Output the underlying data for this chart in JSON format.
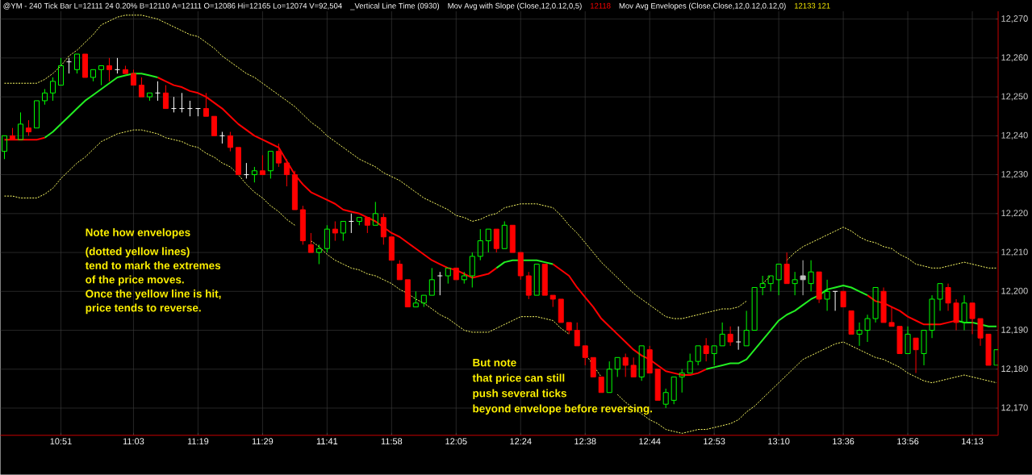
{
  "chart_data": {
    "type": "candlestick",
    "title": "@YM - 240 Tick Bar L=12111 24 0.20% B=12110 A=12111 O=12086 Hi=12165 Lo=12074 V=92,504",
    "annotations": [
      "_Vertical Line Time (0930)",
      "Mov Avg with Slope (Close,12,0.12,0,5)",
      "12118",
      "Mov Avg Envelopes (Close,Close,12,0.12,0.12,0)",
      "12133 121",
      "Note how envelopes",
      "(dotted yellow lines)",
      "tend to mark the extremes",
      "of the price moves.",
      "Once the yellow line is hit,",
      "price tends to reverse.",
      "But note",
      "that price can still",
      "push several ticks",
      "beyond envelope before reversing."
    ],
    "categories": [
      null,
      null,
      null,
      null,
      null,
      null,
      null,
      "10:51",
      null,
      null,
      null,
      null,
      null,
      null,
      null,
      null,
      "11:03",
      null,
      null,
      null,
      null,
      null,
      null,
      null,
      "11:19",
      null,
      null,
      null,
      null,
      null,
      null,
      null,
      "11:29",
      null,
      null,
      null,
      null,
      null,
      null,
      null,
      "11:41",
      null,
      null,
      null,
      null,
      null,
      null,
      null,
      "11:58",
      null,
      null,
      null,
      null,
      null,
      null,
      null,
      "12:05",
      null,
      null,
      null,
      null,
      null,
      null,
      null,
      "12:24",
      null,
      null,
      null,
      null,
      null,
      null,
      null,
      "12:38",
      null,
      null,
      null,
      null,
      null,
      null,
      null,
      "12:44",
      null,
      null,
      null,
      null,
      null,
      null,
      null,
      "12:53",
      null,
      null,
      null,
      null,
      null,
      null,
      null,
      "13:10",
      null,
      null,
      null,
      null,
      null,
      null,
      null,
      "13:36",
      null,
      null,
      null,
      null,
      null,
      null,
      null,
      "13:56",
      null,
      null,
      null,
      null,
      null,
      null,
      null,
      "14:13",
      null,
      null,
      null
    ],
    "ohlc": [
      [
        12236,
        12240,
        12234,
        12240
      ],
      [
        12240,
        12242,
        12239,
        12239
      ],
      [
        12239,
        12246,
        12239,
        12243
      ],
      [
        12242,
        12244,
        12240,
        12241
      ],
      [
        12242,
        12249,
        12242,
        12249
      ],
      [
        12249,
        12252,
        12248,
        12251
      ],
      [
        12251,
        12255,
        12249,
        12254
      ],
      [
        12253,
        12260,
        12253,
        12258
      ],
      [
        12259,
        12260,
        12256,
        12259
      ],
      [
        12257,
        12261,
        12256,
        12261
      ],
      [
        12261,
        12261,
        12255,
        12255
      ],
      [
        12255,
        12257,
        12254,
        12257
      ],
      [
        12257,
        12258,
        12253,
        12258
      ],
      [
        12258,
        12260,
        12254,
        12257
      ],
      [
        12257,
        12260,
        12256,
        12257
      ],
      [
        12257,
        12258,
        12256,
        12256
      ],
      [
        12256,
        12257,
        12253,
        12253
      ],
      [
        12253,
        12255,
        12250,
        12250
      ],
      [
        12250,
        12251,
        12249,
        12251
      ],
      [
        12251,
        12254,
        12249,
        12251
      ],
      [
        12251,
        12253,
        12247,
        12247
      ],
      [
        12247,
        12250,
        12246,
        12247
      ],
      [
        12247,
        12251,
        12246,
        12247
      ],
      [
        12247,
        12249,
        12245,
        12247
      ],
      [
        12247,
        12247,
        12245,
        12247
      ],
      [
        12247,
        12251,
        12245,
        12245
      ],
      [
        12245,
        12245,
        12240,
        12240
      ],
      [
        12240,
        12241,
        12238,
        12240
      ],
      [
        12240,
        12241,
        12236,
        12237
      ],
      [
        12237,
        12237,
        12230,
        12230
      ],
      [
        12230,
        12233,
        12229,
        12230
      ],
      [
        12230,
        12232,
        12228,
        12231
      ],
      [
        12231,
        12235,
        12230,
        12230
      ],
      [
        12231,
        12236,
        12229,
        12236
      ],
      [
        12236,
        12238,
        12232,
        12233
      ],
      [
        12233,
        12234,
        12227,
        12230
      ],
      [
        12230,
        12231,
        12221,
        12221
      ],
      [
        12221,
        12222,
        12212,
        12213
      ],
      [
        12212,
        12215,
        12210,
        12210
      ],
      [
        12210,
        12212,
        12207,
        12211
      ],
      [
        12211,
        12217,
        12210,
        12216
      ],
      [
        12216,
        12218,
        12213,
        12215
      ],
      [
        12215,
        12218,
        12213,
        12218
      ],
      [
        12218,
        12220,
        12215,
        12218
      ],
      [
        12218,
        12219,
        12217,
        12219
      ],
      [
        12219,
        12219,
        12215,
        12217
      ],
      [
        12217,
        12223,
        12217,
        12220
      ],
      [
        12219,
        12220,
        12212,
        12214
      ],
      [
        12214,
        12214,
        12208,
        12208
      ],
      [
        12207,
        12208,
        12203,
        12203
      ],
      [
        12203,
        12203,
        12196,
        12196
      ],
      [
        12196,
        12200,
        12196,
        12197
      ],
      [
        12197,
        12199,
        12196,
        12199
      ],
      [
        12199,
        12206,
        12199,
        12203
      ],
      [
        12204,
        12205,
        12199,
        12204
      ],
      [
        12204,
        12206,
        12202,
        12206
      ],
      [
        12206,
        12206,
        12203,
        12203
      ],
      [
        12203,
        12205,
        12202,
        12204
      ],
      [
        12204,
        12210,
        12201,
        12209
      ],
      [
        12209,
        12216,
        12208,
        12213
      ],
      [
        12213,
        12216,
        12210,
        12216
      ],
      [
        12216,
        12216,
        12210,
        12211
      ],
      [
        12211,
        12218,
        12211,
        12217
      ],
      [
        12217,
        12217,
        12210,
        12210
      ],
      [
        12210,
        12210,
        12203,
        12204
      ],
      [
        12204,
        12205,
        12198,
        12199
      ],
      [
        12199,
        12207,
        12199,
        12207
      ],
      [
        12207,
        12207,
        12199,
        12199
      ],
      [
        12199,
        12199,
        12196,
        12198
      ],
      [
        12198,
        12198,
        12192,
        12192
      ],
      [
        12192,
        12192,
        12189,
        12190
      ],
      [
        12190,
        12192,
        12186,
        12186
      ],
      [
        12186,
        12186,
        12181,
        12183
      ],
      [
        12183,
        12183,
        12178,
        12178
      ],
      [
        12178,
        12178,
        12174,
        12174
      ],
      [
        12174,
        12182,
        12174,
        12180
      ],
      [
        12180,
        12183,
        12178,
        12183
      ],
      [
        12183,
        12184,
        12178,
        12181
      ],
      [
        12181,
        12183,
        12178,
        12178
      ],
      [
        12178,
        12186,
        12177,
        12186
      ],
      [
        12185,
        12186,
        12179,
        12179
      ],
      [
        12180,
        12180,
        12172,
        12172
      ],
      [
        12171,
        12175,
        12170,
        12174
      ],
      [
        12172,
        12178,
        12171,
        12178
      ],
      [
        12178,
        12180,
        12174,
        12179
      ],
      [
        12179,
        12184,
        12179,
        12182
      ],
      [
        12182,
        12186,
        12181,
        12186
      ],
      [
        12186,
        12188,
        12182,
        12184
      ],
      [
        12184,
        12186,
        12181,
        12186
      ],
      [
        12186,
        12192,
        12186,
        12189
      ],
      [
        12189,
        12191,
        12186,
        12187
      ],
      [
        12187,
        12191,
        12185,
        12187
      ],
      [
        12186,
        12195,
        12186,
        12190
      ],
      [
        12190,
        12201,
        12190,
        12201
      ],
      [
        12201,
        12204,
        12199,
        12202
      ],
      [
        12202,
        12204,
        12200,
        12204
      ],
      [
        12203,
        12207,
        12199,
        12207
      ],
      [
        12207,
        12210,
        12202,
        12202
      ],
      [
        12202,
        12205,
        12199,
        12203
      ],
      [
        12204,
        12208,
        12199,
        12203
      ],
      [
        12202,
        12208,
        12200,
        12205
      ],
      [
        12205,
        12205,
        12197,
        12198
      ],
      [
        12198,
        12203,
        12195,
        12200
      ],
      [
        12200,
        12200,
        12195,
        12200
      ],
      [
        12200,
        12200,
        12196,
        12196
      ],
      [
        12195,
        12195,
        12189,
        12189
      ],
      [
        12189,
        12192,
        12186,
        12190
      ],
      [
        12190,
        12194,
        12187,
        12193
      ],
      [
        12193,
        12201,
        12192,
        12201
      ],
      [
        12200,
        12201,
        12192,
        12192
      ],
      [
        12192,
        12196,
        12191,
        12191
      ],
      [
        12191,
        12191,
        12184,
        12184
      ],
      [
        12184,
        12191,
        12184,
        12189
      ],
      [
        12188,
        12188,
        12179,
        12185
      ],
      [
        12184,
        12190,
        12181,
        12190
      ],
      [
        12190,
        12199,
        12188,
        12198
      ],
      [
        12198,
        12202,
        12195,
        12202
      ],
      [
        12201,
        12202,
        12195,
        12197
      ],
      [
        12197,
        12198,
        12190,
        12192
      ],
      [
        12192,
        12199,
        12190,
        12197
      ],
      [
        12197,
        12197,
        12189,
        12193
      ],
      [
        12193,
        12193,
        12186,
        12188
      ],
      [
        12189,
        12189,
        12181,
        12181
      ],
      [
        12181,
        12185,
        12181,
        12185
      ]
    ],
    "colors": [
      "#00ff00",
      "#ff0000",
      "#00ff00",
      "#ff0000",
      "#00ff00",
      "#00ff00",
      "#00ff00",
      "#00ff00",
      "#ffffff",
      "#00ff00",
      "#ff0000",
      "#00ff00",
      "#00ff00",
      "#ff0000",
      "#ffffff",
      "#ff0000",
      "#ff0000",
      "#ff0000",
      "#00ff00",
      "#ffffff",
      "#ff0000",
      "#ffffff",
      "#ffffff",
      "#ffffff",
      "#ffffff",
      "#ff0000",
      "#ff0000",
      "#ffffff",
      "#ff0000",
      "#ff0000",
      "#ffffff",
      "#00ff00",
      "#ff0000",
      "#00ff00",
      "#ff0000",
      "#ff0000",
      "#ff0000",
      "#ff0000",
      "#ff0000",
      "#00ff00",
      "#00ff00",
      "#ff0000",
      "#00ff00",
      "#ffffff",
      "#00ff00",
      "#ff0000",
      "#00ff00",
      "#ff0000",
      "#ff0000",
      "#ff0000",
      "#ff0000",
      "#00ff00",
      "#00ff00",
      "#00ff00",
      "#ffffff",
      "#00ff00",
      "#ff0000",
      "#00ff00",
      "#00ff00",
      "#00ff00",
      "#00ff00",
      "#ff0000",
      "#00ff00",
      "#ff0000",
      "#ff0000",
      "#ff0000",
      "#00ff00",
      "#ff0000",
      "#ff0000",
      "#ff0000",
      "#ff0000",
      "#ff0000",
      "#ff0000",
      "#ff0000",
      "#ff0000",
      "#00ff00",
      "#00ff00",
      "#ff0000",
      "#ff0000",
      "#00ff00",
      "#ff0000",
      "#ff0000",
      "#00ff00",
      "#00ff00",
      "#00ff00",
      "#00ff00",
      "#00ff00",
      "#ff0000",
      "#00ff00",
      "#00ff00",
      "#ff0000",
      "#ffffff",
      "#00ff00",
      "#00ff00",
      "#00ff00",
      "#00ff00",
      "#00ff00",
      "#ff0000",
      "#00ff00",
      "#c0c0c0",
      "#00ff00",
      "#ff0000",
      "#00ff00",
      "#ffffff",
      "#ff0000",
      "#ff0000",
      "#00ff00",
      "#00ff00",
      "#00ff00",
      "#ff0000",
      "#ff0000",
      "#ff0000",
      "#00ff00",
      "#ff0000",
      "#00ff00",
      "#00ff00",
      "#00ff00",
      "#ff0000",
      "#ff0000",
      "#00ff00",
      "#ff0000",
      "#ff0000",
      "#ff0000",
      "#00ff00"
    ],
    "series": [
      {
        "type": "line",
        "color": "#ff0000",
        "line_style": "solid",
        "values": [
          12239,
          12239,
          12239,
          12239,
          12239,
          12239.5,
          null,
          null,
          null,
          null,
          null,
          null,
          null,
          null,
          null,
          null,
          null,
          null,
          null,
          12255,
          12254,
          12253,
          12252.5,
          12251.5,
          12251,
          12250,
          12248.5,
          12247,
          12245,
          12243,
          12241.5,
          12240,
          12239,
          12238,
          12237,
          12233.5,
          12230,
          12227.5,
          12225.5,
          12224.5,
          12223.5,
          12222.5,
          12221,
          12220.5,
          12220,
          12219,
          12218,
          12216.5,
          12215,
          12214,
          12212.5,
          12211,
          12209.5,
          12208,
          12207,
          12206,
          12205.5,
          12204.5,
          12203.5,
          12204,
          12204.5,
          12206,
          null,
          null,
          null,
          null,
          null,
          null,
          12207,
          12205.5,
          12204,
          12201,
          12198.5,
          12196,
          12193,
          12191,
          12189,
          12187,
          12185,
          12183.5,
          12182.5,
          12181,
          12179.5,
          12179,
          12178.5,
          12178.5,
          12179,
          12180,
          null,
          null,
          null,
          null,
          null,
          null,
          null,
          null,
          null,
          null,
          null,
          null,
          null,
          null,
          null,
          null,
          null,
          null,
          null,
          12199,
          12197.5,
          12197,
          12196,
          12195,
          12193.5,
          12192.5,
          12191.5,
          12191.5,
          12191.5,
          12192,
          12192.5,
          null,
          null,
          null,
          null,
          null
        ]
      },
      {
        "type": "line",
        "color": "#22ee22",
        "line_style": "solid",
        "values": [
          null,
          null,
          null,
          null,
          null,
          12239.5,
          12241,
          12243,
          12245,
          12247,
          12249,
          12250.5,
          12252,
          12253.5,
          12255,
          12255.5,
          12256,
          12256,
          12255.5,
          12255,
          null,
          null,
          null,
          null,
          null,
          null,
          null,
          null,
          null,
          null,
          null,
          null,
          null,
          null,
          null,
          null,
          null,
          null,
          null,
          null,
          null,
          null,
          null,
          null,
          null,
          null,
          null,
          null,
          null,
          null,
          null,
          null,
          null,
          null,
          null,
          null,
          null,
          null,
          null,
          null,
          null,
          12206,
          12207.5,
          12208,
          12208,
          12208,
          12208,
          12207.5,
          12207,
          null,
          null,
          null,
          null,
          null,
          null,
          null,
          null,
          null,
          null,
          null,
          null,
          null,
          null,
          null,
          null,
          null,
          null,
          12180,
          12180.5,
          12181,
          12181.5,
          12181.5,
          12182.5,
          12185,
          12187.5,
          12190,
          12192.5,
          12194,
          12195,
          12196.5,
          12198,
          12199,
          12200.5,
          12201,
          12201.5,
          12201,
          12200,
          12199,
          null,
          null,
          null,
          null,
          null,
          null,
          null,
          null,
          null,
          null,
          12192.5,
          12192,
          12192,
          12191.5,
          12191,
          12191
        ]
      },
      {
        "type": "line",
        "color": "#ffff66",
        "line_style": "dotted",
        "values": [
          12253.5,
          12253.5,
          12253.5,
          12253.5,
          12253.5,
          12254.5,
          12256,
          12258,
          12260.5,
          12262,
          12264,
          12266,
          12268.5,
          12269.5,
          12270.5,
          12271,
          12271,
          12271,
          12270.5,
          12270,
          12269,
          12268,
          12267,
          12266,
          12265.5,
          12264,
          12262.5,
          12260.5,
          12259,
          12257.5,
          12256,
          12255,
          12253.5,
          12252,
          12250.5,
          12249,
          12247.5,
          12245.5,
          12243.5,
          12242,
          12240,
          12238.5,
          12237,
          12235.5,
          12234,
          12233,
          12232,
          12230.5,
          12229.5,
          12228.5,
          12227,
          12225.5,
          12224,
          12223,
          12222,
          12221,
          12219.5,
          12219,
          12218,
          12218.5,
          12219.5,
          12220,
          12221.5,
          12222,
          12222.5,
          12222.5,
          12222.5,
          12222,
          12221.5,
          12219.5,
          12217,
          12215,
          12212.5,
          12210,
          12207.5,
          12205.5,
          12203.5,
          12201.5,
          12199.5,
          12198,
          12196.5,
          12195,
          12193.5,
          12193,
          12193,
          12193.5,
          12194,
          12194.5,
          12195,
          12195.5,
          12195.5,
          12196,
          12197.5,
          null,
          12202,
          12204,
          null,
          12208,
          12210,
          12211.5,
          12212.5,
          12213.5,
          12214.5,
          12215.5,
          12216.5,
          12215.5,
          12214,
          12213,
          12212.5,
          12211.5,
          12211,
          12209.5,
          12208.5,
          12207,
          12206.5,
          12206,
          12206,
          12206.5,
          12207,
          12207.5,
          12207,
          12206.5,
          12206,
          12206
        ]
      },
      {
        "type": "line",
        "color": "#ffff66",
        "line_style": "dotted",
        "values": [
          12224.5,
          12224.5,
          12224,
          12224,
          12224,
          12225,
          12226.5,
          12229,
          12231,
          12233,
          12234.5,
          12236.5,
          12238.5,
          12239.5,
          12240.5,
          12241,
          12241.5,
          12241.5,
          12241,
          12240.5,
          12239.5,
          12239,
          12238.5,
          12237.5,
          12237,
          12235.5,
          12234.5,
          12233,
          12232,
          12230,
          12227.5,
          12225.5,
          12224,
          12222,
          12220.5,
          12218.5,
          12217,
          null,
          12213,
          12211.5,
          12209.5,
          12208,
          12207,
          12206,
          12205.5,
          12204.5,
          12204,
          12203,
          12202,
          12200.5,
          12199.5,
          12198,
          12197,
          12195.5,
          12194,
          12193,
          12191.5,
          12190,
          12189.5,
          12189.5,
          12189.5,
          12190.5,
          12191.5,
          12192.5,
          12193.5,
          12193.5,
          12193.5,
          12193,
          12192.5,
          12190.5,
          12189,
          null,
          12184,
          12181,
          12178,
          null,
          12173.5,
          12171.5,
          12170,
          12168.5,
          12167,
          12166,
          12164.5,
          12164,
          12163.5,
          12164,
          12164.5,
          12164.5,
          12165,
          12165.5,
          12166,
          12167,
          12169,
          12170.5,
          12172.5,
          12174.5,
          12176.5,
          12178.5,
          12180.5,
          12182.5,
          12183.5,
          12184.5,
          12185.5,
          12186.5,
          12187,
          12186,
          12185,
          12184,
          12183,
          12182.5,
          12181.5,
          12180.5,
          12179,
          12178,
          12177,
          12176.5,
          12177,
          12177.5,
          12178,
          12178.5,
          12178,
          12177.5,
          12177,
          12176.5
        ]
      }
    ],
    "ylim": [
      12163,
      12272
    ],
    "yticks": [
      {
        "value": 12170,
        "label": "12,170"
      },
      {
        "value": 12180,
        "label": "12,180"
      },
      {
        "value": 12190,
        "label": "12,190"
      },
      {
        "value": 12200,
        "label": "12,200"
      },
      {
        "value": 12210,
        "label": "12,210"
      },
      {
        "value": 12220,
        "label": "12,220"
      },
      {
        "value": 12230,
        "label": "12,230"
      },
      {
        "value": 12240,
        "label": "12,240"
      },
      {
        "value": 12250,
        "label": "12,250"
      },
      {
        "value": 12260,
        "label": "12,260"
      },
      {
        "value": 12270,
        "label": "12,270"
      }
    ],
    "grid": true
  }
}
